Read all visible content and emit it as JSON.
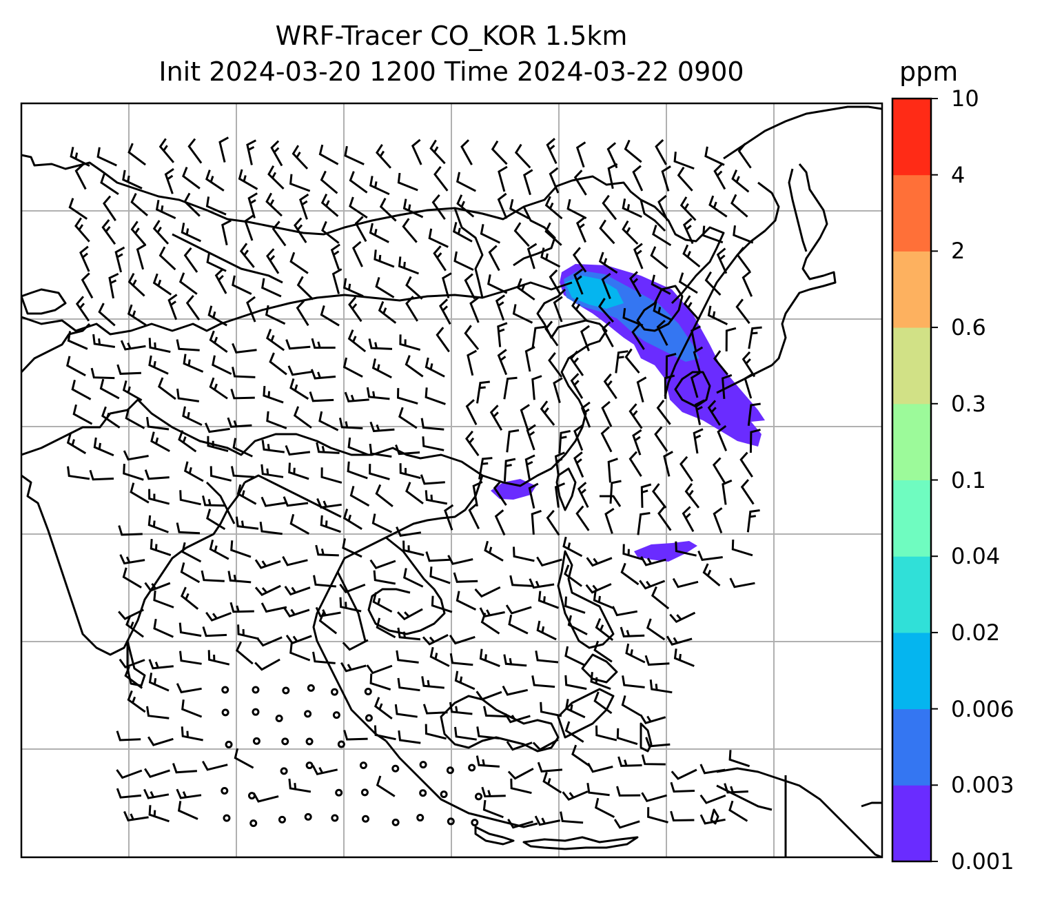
{
  "title": {
    "line1": "WRF-Tracer CO_KOR 1.5km",
    "line2": "Init 2024-03-20 1200 Time 2024-03-22 0900"
  },
  "colorbar": {
    "unit": "ppm",
    "ticks": [
      "0.001",
      "0.003",
      "0.006",
      "0.02",
      "0.04",
      "0.1",
      "0.3",
      "0.6",
      "2",
      "4",
      "10"
    ],
    "colors": [
      "#6a2cff",
      "#3476f2",
      "#05b5ef",
      "#30e0d8",
      "#6ffcc0",
      "#9cfa9a",
      "#d1e186",
      "#fdb15f",
      "#ff7038",
      "#ff2b16"
    ]
  },
  "plume_colors": {
    "lowest": "#6a2cff",
    "low": "#3476f2",
    "mid": "#05b5ef"
  },
  "map": {
    "gridlines": true,
    "projection": "Mercator",
    "region": "East and Southeast Asia"
  }
}
